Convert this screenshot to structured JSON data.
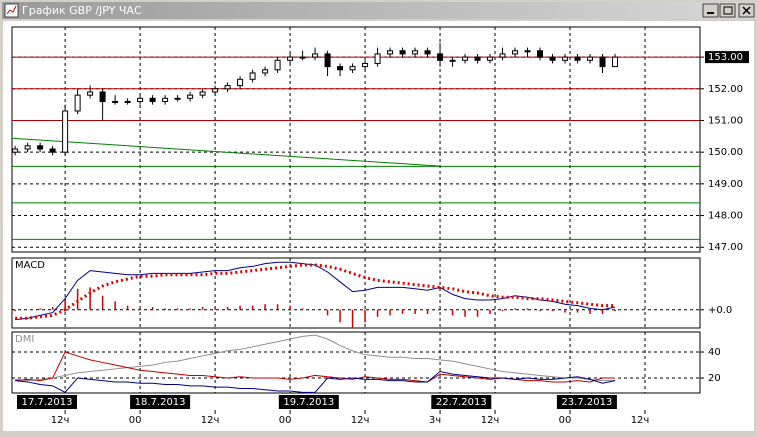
{
  "window_title": "График GBP /JPY ЧАС",
  "chart_data": [
    {
      "type": "candlestick",
      "xlim": [
        -0.5,
        109.6
      ],
      "ylim": [
        146.85,
        153.95
      ],
      "x": [
        0,
        2,
        4,
        6,
        8,
        10,
        12,
        14,
        16,
        18,
        20,
        22,
        24,
        26,
        28,
        30,
        32,
        34,
        36,
        38,
        40,
        42,
        44,
        46,
        48,
        50,
        52,
        54,
        56,
        58,
        60,
        62,
        64,
        66,
        68,
        70,
        72,
        74,
        76,
        78,
        80,
        82,
        84,
        86,
        88,
        90,
        92,
        94,
        96
      ],
      "open": [
        150.0,
        150.1,
        150.2,
        150.1,
        150.0,
        151.3,
        151.8,
        151.9,
        151.6,
        151.6,
        151.6,
        151.7,
        151.6,
        151.7,
        151.7,
        151.8,
        151.9,
        152.0,
        152.1,
        152.3,
        152.5,
        152.6,
        152.9,
        153.0,
        153.0,
        153.1,
        152.7,
        152.6,
        152.7,
        152.8,
        153.1,
        153.2,
        153.1,
        153.2,
        153.1,
        152.9,
        152.9,
        153.0,
        152.9,
        153.0,
        153.1,
        153.2,
        153.2,
        153.0,
        152.9,
        153.0,
        152.9,
        153.0,
        152.7
      ],
      "high": [
        150.2,
        150.3,
        150.3,
        150.2,
        151.5,
        152.0,
        152.1,
        152.0,
        151.8,
        151.7,
        151.8,
        151.8,
        151.8,
        151.8,
        151.9,
        152.0,
        152.1,
        152.2,
        152.4,
        152.6,
        152.7,
        153.0,
        153.1,
        153.2,
        153.3,
        153.2,
        152.8,
        152.8,
        152.9,
        153.3,
        153.3,
        153.3,
        153.3,
        153.3,
        153.45,
        153.0,
        153.1,
        153.1,
        153.1,
        153.3,
        153.3,
        153.3,
        153.3,
        153.1,
        153.1,
        153.1,
        153.1,
        153.1,
        153.1
      ],
      "low": [
        149.9,
        150.0,
        150.0,
        149.9,
        149.9,
        151.2,
        151.7,
        151.0,
        151.5,
        151.5,
        151.5,
        151.5,
        151.5,
        151.6,
        151.6,
        151.7,
        151.8,
        151.9,
        152.0,
        152.2,
        152.4,
        152.5,
        152.8,
        152.9,
        152.9,
        152.4,
        152.4,
        152.5,
        152.6,
        152.7,
        153.0,
        153.0,
        153.0,
        153.0,
        152.7,
        152.7,
        152.8,
        152.8,
        152.8,
        152.9,
        153.0,
        153.0,
        152.9,
        152.8,
        152.8,
        152.8,
        152.8,
        152.5,
        152.7
      ],
      "close": [
        150.1,
        150.2,
        150.1,
        150.0,
        151.3,
        151.8,
        151.9,
        151.6,
        151.6,
        151.6,
        151.7,
        151.6,
        151.7,
        151.7,
        151.8,
        151.9,
        152.0,
        152.1,
        152.3,
        152.5,
        152.6,
        152.9,
        153.0,
        153.0,
        153.1,
        152.7,
        152.6,
        152.7,
        152.8,
        153.1,
        153.2,
        153.1,
        153.2,
        153.1,
        152.9,
        152.9,
        153.0,
        152.9,
        153.0,
        153.1,
        153.2,
        153.2,
        153.0,
        152.9,
        153.0,
        152.9,
        153.0,
        152.7,
        153.0
      ],
      "yticks": [
        {
          "value": 153,
          "label": "153.00"
        },
        {
          "value": 152,
          "label": "152.00"
        },
        {
          "value": 151,
          "label": "151.00"
        },
        {
          "value": 150,
          "label": "150.00"
        },
        {
          "value": 149,
          "label": "149.00"
        },
        {
          "value": 148,
          "label": "148.00"
        },
        {
          "value": 147,
          "label": "147.00"
        }
      ],
      "current": 0,
      "levels": [
        {
          "value": 153,
          "color": "#b00000"
        },
        {
          "value": 152,
          "color": "#b00000"
        },
        {
          "value": 151,
          "color": "#b00000"
        },
        {
          "value": 149.55,
          "color": "#008000"
        },
        {
          "value": 148.4,
          "color": "#008000"
        },
        {
          "value": 147.25,
          "color": "#008000"
        }
      ],
      "trendline": {
        "x": [
          -0.5,
          68
        ],
        "y": [
          150.44,
          149.56
        ],
        "color": "#008000"
      },
      "xticks": [
        {
          "value": 8,
          "label": "12ч"
        },
        {
          "value": 20,
          "label": "00"
        },
        {
          "value": 32,
          "label": "12ч"
        },
        {
          "value": 44,
          "label": "00"
        },
        {
          "value": 56,
          "label": "12ч"
        },
        {
          "value": 68,
          "label": "3ч"
        },
        {
          "value": 76.8,
          "label": "12ч"
        },
        {
          "value": 88.8,
          "label": "00"
        },
        {
          "value": 100.8,
          "label": "12ч"
        }
      ],
      "date_labels": [
        {
          "value": 5.1,
          "label": "17.7.2013"
        },
        {
          "value": 23.2,
          "label": "18.7.2013"
        },
        {
          "value": 47,
          "label": "19.7.2013"
        },
        {
          "value": 71.4,
          "label": "22.7.2013"
        },
        {
          "value": 91.5,
          "label": "23.7.2013"
        }
      ]
    },
    {
      "type": "macd",
      "label": "MACD",
      "ylim": [
        -0.13,
        0.37
      ],
      "yticks": [
        {
          "value": 0,
          "label": "+0.0"
        }
      ],
      "series": [
        {
          "kind": "histogram",
          "color": "#d00000",
          "values": [
            -0.01,
            0.0,
            0.01,
            0.02,
            0.08,
            0.15,
            0.16,
            0.1,
            0.06,
            0.03,
            0.01,
            0.02,
            0.01,
            0.01,
            0.01,
            0.02,
            0.02,
            0.02,
            0.03,
            0.03,
            0.04,
            0.04,
            0.03,
            0.01,
            0.0,
            -0.04,
            -0.09,
            -0.13,
            -0.09,
            -0.05,
            -0.04,
            -0.03,
            -0.03,
            -0.03,
            0.0,
            -0.04,
            -0.05,
            -0.05,
            -0.03,
            -0.01,
            0.01,
            0.01,
            -0.01,
            -0.01,
            -0.02,
            -0.02,
            -0.03,
            -0.03,
            -0.01
          ]
        },
        {
          "kind": "line",
          "color": "#00008b",
          "values": [
            -0.07,
            -0.06,
            -0.04,
            -0.02,
            0.08,
            0.21,
            0.28,
            0.27,
            0.26,
            0.25,
            0.25,
            0.26,
            0.26,
            0.26,
            0.26,
            0.27,
            0.28,
            0.28,
            0.3,
            0.31,
            0.33,
            0.34,
            0.34,
            0.33,
            0.32,
            0.27,
            0.2,
            0.13,
            0.14,
            0.16,
            0.16,
            0.16,
            0.15,
            0.14,
            0.16,
            0.11,
            0.08,
            0.07,
            0.07,
            0.08,
            0.1,
            0.09,
            0.07,
            0.06,
            0.04,
            0.03,
            0.01,
            0.0,
            0.02
          ]
        },
        {
          "kind": "dotted",
          "color": "#e00000",
          "values": [
            -0.06,
            -0.06,
            -0.05,
            -0.04,
            0.0,
            0.06,
            0.12,
            0.17,
            0.2,
            0.22,
            0.24,
            0.24,
            0.25,
            0.25,
            0.25,
            0.25,
            0.26,
            0.26,
            0.27,
            0.28,
            0.29,
            0.3,
            0.31,
            0.32,
            0.32,
            0.31,
            0.29,
            0.26,
            0.23,
            0.21,
            0.2,
            0.19,
            0.18,
            0.17,
            0.16,
            0.15,
            0.13,
            0.12,
            0.1,
            0.09,
            0.09,
            0.08,
            0.08,
            0.07,
            0.06,
            0.05,
            0.04,
            0.03,
            0.03
          ]
        }
      ]
    },
    {
      "type": "dmi",
      "label": "DMI",
      "ylim": [
        8.5,
        55.4
      ],
      "yticks": [
        40,
        20
      ],
      "series": [
        {
          "kind": "line",
          "color": "#909090",
          "values": [
            19,
            18,
            19,
            20,
            22,
            24,
            25,
            26,
            27,
            28,
            29,
            30,
            32,
            33,
            35,
            37,
            39,
            41,
            42,
            44,
            46,
            48,
            50,
            52,
            53,
            50,
            45,
            41,
            38,
            37,
            36,
            36,
            35,
            35,
            34,
            33,
            31,
            29,
            27,
            25,
            24,
            23,
            22,
            21,
            20,
            20,
            19,
            18,
            18
          ]
        },
        {
          "kind": "line",
          "color": "#c00000",
          "values": [
            18,
            19,
            18,
            20,
            40,
            37,
            34,
            32,
            30,
            28,
            26,
            25,
            24,
            23,
            22,
            22,
            21,
            20,
            21,
            20,
            20,
            20,
            19,
            20,
            22,
            21,
            20,
            19,
            21,
            20,
            19,
            19,
            18,
            17,
            23,
            22,
            21,
            20,
            19,
            20,
            19,
            18,
            18,
            17,
            17,
            18,
            17,
            20,
            20
          ]
        },
        {
          "kind": "line",
          "color": "#00008b",
          "values": [
            18,
            17,
            15,
            14,
            9,
            20,
            19,
            18,
            17,
            17,
            16,
            16,
            15,
            15,
            14,
            14,
            13,
            13,
            12,
            12,
            11,
            10,
            10,
            9,
            9,
            20,
            19,
            20,
            19,
            19,
            18,
            18,
            17,
            17,
            25,
            23,
            22,
            21,
            20,
            20,
            19,
            20,
            19,
            19,
            20,
            21,
            19,
            16,
            18
          ]
        }
      ]
    }
  ]
}
